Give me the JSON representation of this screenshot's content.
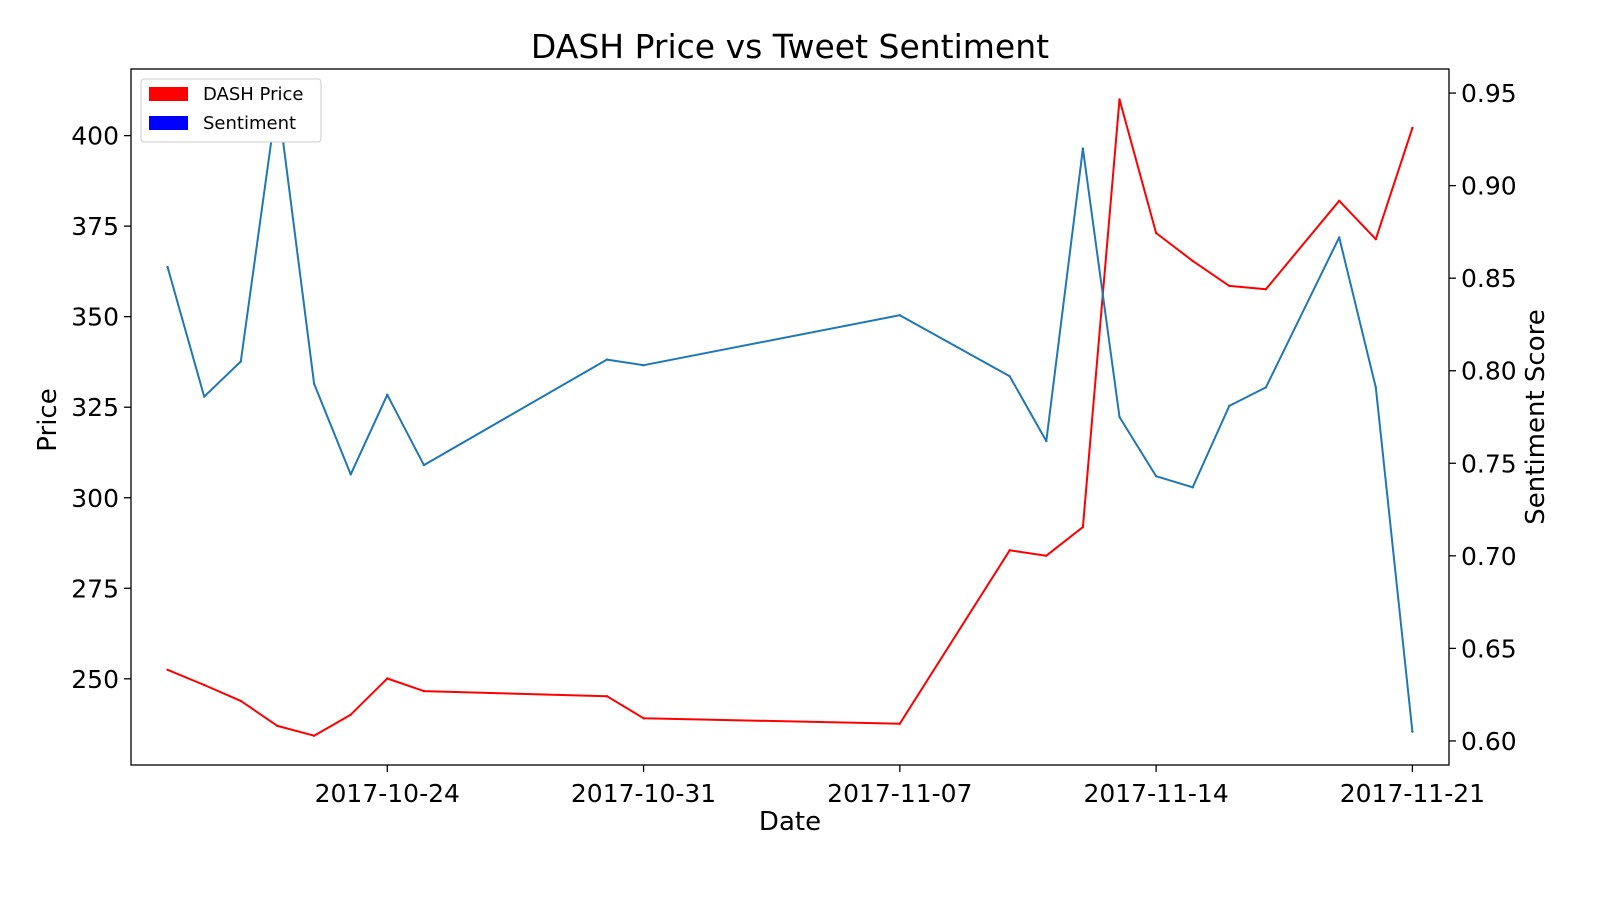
{
  "chart_data": {
    "type": "line",
    "title": "DASH Price vs Tweet Sentiment",
    "xlabel": "Date",
    "ylabel": "Price",
    "y2label": "Sentiment Score",
    "x_ticks": [
      "2017-10-24",
      "2017-10-31",
      "2017-11-07",
      "2017-11-14",
      "2017-11-21"
    ],
    "xlim": [
      "2017-10-17",
      "2017-11-22"
    ],
    "ylim": [
      226.2,
      418.4
    ],
    "y_ticks": [
      250,
      275,
      300,
      325,
      350,
      375,
      400
    ],
    "y2lim": [
      0.587,
      0.963
    ],
    "y2_ticks": [
      "0.60",
      "0.65",
      "0.70",
      "0.75",
      "0.80",
      "0.85",
      "0.90",
      "0.95"
    ],
    "grid": false,
    "legend": {
      "position": "top-left",
      "entries": [
        {
          "label": "DASH Price",
          "color": "#ff0000"
        },
        {
          "label": "Sentiment",
          "color": "#0000ff"
        }
      ]
    },
    "series": [
      {
        "name": "DASH Price",
        "axis": "left",
        "color": "#ff0000",
        "points": [
          [
            "2017-10-18",
            252.5
          ],
          [
            "2017-10-19",
            248.3
          ],
          [
            "2017-10-20",
            243.9
          ],
          [
            "2017-10-21",
            237.0
          ],
          [
            "2017-10-22",
            234.3
          ],
          [
            "2017-10-23",
            240.1
          ],
          [
            "2017-10-24",
            250.1
          ],
          [
            "2017-10-25",
            246.6
          ],
          [
            "2017-10-30",
            245.2
          ],
          [
            "2017-10-31",
            239.1
          ],
          [
            "2017-11-07",
            237.6
          ],
          [
            "2017-11-10",
            285.5
          ],
          [
            "2017-11-11",
            284.0
          ],
          [
            "2017-11-12",
            291.9
          ],
          [
            "2017-11-13",
            410.0
          ],
          [
            "2017-11-14",
            373.1
          ],
          [
            "2017-11-15",
            365.4
          ],
          [
            "2017-11-16",
            358.5
          ],
          [
            "2017-11-17",
            357.6
          ],
          [
            "2017-11-19",
            382.0
          ],
          [
            "2017-11-20",
            371.4
          ],
          [
            "2017-11-21",
            402.1
          ]
        ]
      },
      {
        "name": "Sentiment",
        "axis": "right",
        "color": "#1f77b4",
        "points": [
          [
            "2017-10-18",
            0.856
          ],
          [
            "2017-10-19",
            0.786
          ],
          [
            "2017-10-20",
            0.805
          ],
          [
            "2017-10-21",
            0.948
          ],
          [
            "2017-10-22",
            0.793
          ],
          [
            "2017-10-23",
            0.744
          ],
          [
            "2017-10-24",
            0.787
          ],
          [
            "2017-10-25",
            0.749
          ],
          [
            "2017-10-30",
            0.806
          ],
          [
            "2017-10-31",
            0.803
          ],
          [
            "2017-11-07",
            0.83
          ],
          [
            "2017-11-10",
            0.797
          ],
          [
            "2017-11-11",
            0.762
          ],
          [
            "2017-11-12",
            0.92
          ],
          [
            "2017-11-13",
            0.775
          ],
          [
            "2017-11-14",
            0.743
          ],
          [
            "2017-11-15",
            0.737
          ],
          [
            "2017-11-16",
            0.781
          ],
          [
            "2017-11-17",
            0.791
          ],
          [
            "2017-11-19",
            0.872
          ],
          [
            "2017-11-20",
            0.791
          ],
          [
            "2017-11-21",
            0.605
          ]
        ]
      }
    ]
  }
}
